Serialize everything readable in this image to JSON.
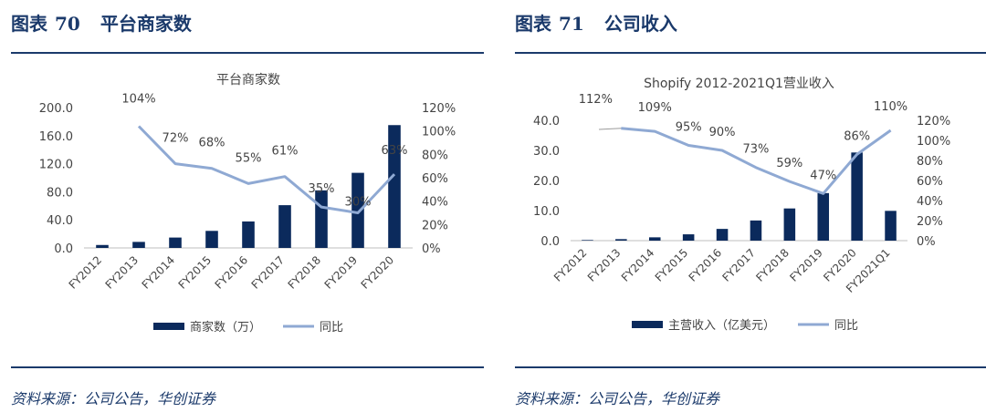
{
  "left": {
    "figure_label": "图表",
    "figure_number": "70",
    "figure_title": "平台商家数",
    "source": "资料来源：公司公告，华创证券",
    "chart_data": {
      "type": "bar",
      "title": "平台商家数",
      "categories": [
        "FY2012",
        "FY2013",
        "FY2014",
        "FY2015",
        "FY2016",
        "FY2017",
        "FY2018",
        "FY2019",
        "FY2020"
      ],
      "series": [
        {
          "name": "商家数（万）",
          "type": "bar",
          "axis": "left",
          "color": "#0b2a5c",
          "values": [
            4.2,
            8.6,
            14.8,
            24.3,
            37.7,
            60.9,
            82.0,
            107.0,
            175.0
          ]
        },
        {
          "name": "同比",
          "type": "line",
          "axis": "right",
          "color": "#8fa9d3",
          "values": [
            null,
            104,
            72,
            68,
            55,
            61,
            35,
            30,
            63
          ],
          "labels": [
            "",
            "104%",
            "72%",
            "68%",
            "55%",
            "61%",
            "35%",
            "30%",
            "63%"
          ]
        }
      ],
      "y_left": {
        "min": 0,
        "max": 200,
        "ticks": [
          "200.0",
          "160.0",
          "120.0",
          "80.0",
          "40.0",
          "0.0"
        ]
      },
      "y_right": {
        "min": 0,
        "max": 120,
        "ticks": [
          "120%",
          "100%",
          "80%",
          "60%",
          "40%",
          "20%",
          "0%"
        ]
      },
      "grid": false,
      "legend_position": "bottom"
    }
  },
  "right": {
    "figure_label": "图表",
    "figure_number": "71",
    "figure_title": "公司收入",
    "source": "资料来源：公司公告，华创证券",
    "chart_data": {
      "type": "bar",
      "title": "Shopify 2012-2021Q1营业收入",
      "categories": [
        "FY2012",
        "FY2013",
        "FY2014",
        "FY2015",
        "FY2016",
        "FY2017",
        "FY2018",
        "FY2019",
        "FY2020",
        "FY2021Q1"
      ],
      "series": [
        {
          "name": "主营收入（亿美元）",
          "type": "bar",
          "axis": "left",
          "color": "#0b2a5c",
          "values": [
            0.2,
            0.5,
            1.1,
            2.1,
            3.9,
            6.7,
            10.7,
            15.8,
            29.3,
            9.9
          ]
        },
        {
          "name": "同比",
          "type": "line",
          "axis": "right",
          "color": "#8fa9d3",
          "values": [
            null,
            112,
            109,
            95,
            90,
            73,
            59,
            47,
            86,
            110
          ],
          "labels": [
            "",
            "112%",
            "109%",
            "95%",
            "90%",
            "73%",
            "59%",
            "47%",
            "86%",
            "110%"
          ]
        }
      ],
      "y_left": {
        "min": 0,
        "max": 40,
        "ticks": [
          "40.0",
          "30.0",
          "20.0",
          "10.0",
          "0.0"
        ]
      },
      "y_right": {
        "min": 0,
        "max": 120,
        "ticks": [
          "120%",
          "100%",
          "80%",
          "60%",
          "40%",
          "20%",
          "0%"
        ]
      },
      "grid": false,
      "legend_position": "bottom"
    }
  }
}
